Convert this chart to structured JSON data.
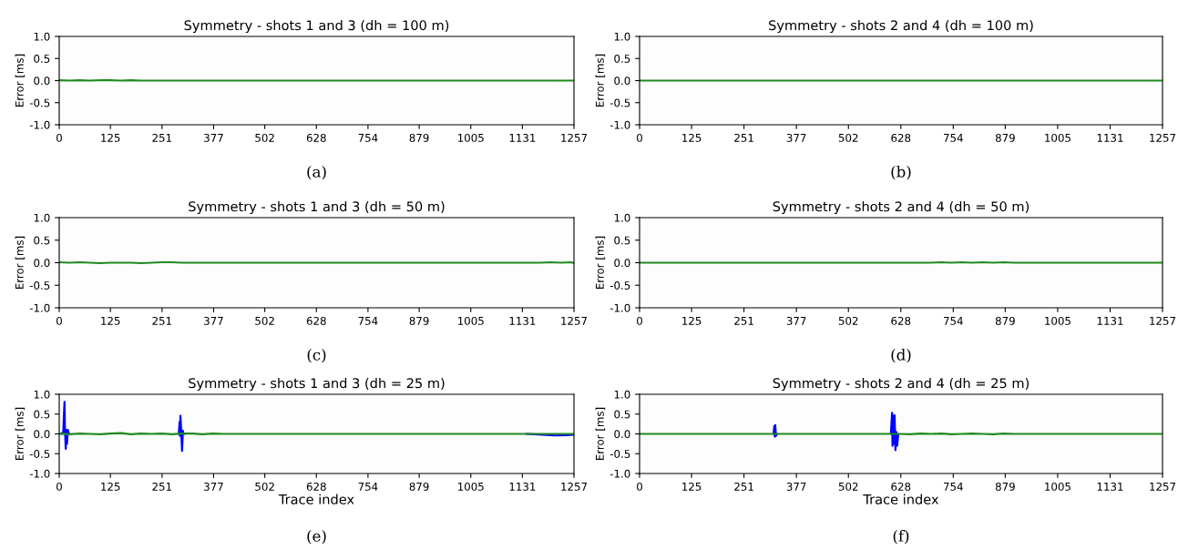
{
  "chart_data": [
    {
      "type": "line",
      "title": "Symmetry - shots 1 and 3 (dh = 100 m)",
      "ylabel": "Error [ms]",
      "xlim": [
        0,
        1257
      ],
      "xticks": [
        0,
        125,
        251,
        377,
        502,
        628,
        754,
        879,
        1005,
        1131,
        1257
      ],
      "ylim": [
        -1,
        1
      ],
      "yticks": [
        {
          "value": -1,
          "label": "-1.0"
        },
        {
          "value": -0.5,
          "label": "-0.5"
        },
        {
          "value": 0,
          "label": "0.0"
        },
        {
          "value": 0.5,
          "label": "0.5"
        },
        {
          "value": 1,
          "label": "1.0"
        }
      ],
      "grid": false,
      "annotations": [
        "(a)"
      ],
      "series": [
        {
          "color": "#208a20",
          "x": [
            0,
            25,
            50,
            75,
            100,
            125,
            150,
            175,
            200,
            225,
            250,
            275,
            300,
            325,
            350,
            375,
            400,
            425,
            450,
            475,
            500,
            525,
            550,
            575,
            600,
            625,
            650,
            675,
            700,
            725,
            750,
            775,
            800,
            825,
            850,
            875,
            900,
            925,
            950,
            975,
            1000,
            1025,
            1050,
            1075,
            1100,
            1125,
            1150,
            1175,
            1200,
            1225,
            1250,
            1257
          ],
          "values": [
            0.01,
            0,
            0.01,
            0,
            0.01,
            0.01,
            0,
            0.01,
            0,
            0,
            0,
            0,
            0,
            0,
            0,
            0,
            0,
            0,
            0,
            0,
            0,
            0,
            0,
            0,
            0,
            0,
            0,
            0,
            0,
            0,
            0,
            0,
            0,
            0,
            0,
            0,
            0,
            0,
            0,
            0,
            0,
            0,
            0,
            0,
            0,
            0,
            0,
            0,
            0,
            0,
            0,
            0
          ]
        }
      ]
    },
    {
      "type": "line",
      "title": "Symmetry - shots 1 and 3 (dh = 50 m)",
      "ylabel": "Error [ms]",
      "xlim": [
        0,
        1257
      ],
      "xticks": [
        0,
        125,
        251,
        377,
        502,
        628,
        754,
        879,
        1005,
        1131,
        1257
      ],
      "ylim": [
        -1,
        1
      ],
      "yticks": [
        {
          "value": -1,
          "label": "-1.0"
        },
        {
          "value": -0.5,
          "label": "-0.5"
        },
        {
          "value": 0,
          "label": "0.0"
        },
        {
          "value": 0.5,
          "label": "0.5"
        },
        {
          "value": 1,
          "label": "1.0"
        }
      ],
      "grid": false,
      "annotations": [
        "(c)"
      ],
      "series": [
        {
          "color": "#208a20",
          "x": [
            0,
            25,
            50,
            75,
            100,
            125,
            150,
            175,
            200,
            225,
            250,
            275,
            300,
            325,
            350,
            375,
            400,
            425,
            450,
            475,
            500,
            525,
            550,
            575,
            600,
            625,
            650,
            675,
            700,
            725,
            750,
            775,
            800,
            825,
            850,
            875,
            900,
            925,
            950,
            975,
            1000,
            1025,
            1050,
            1075,
            1100,
            1125,
            1150,
            1175,
            1200,
            1225,
            1250,
            1257
          ],
          "values": [
            0.01,
            0,
            0.01,
            0,
            -0.01,
            0,
            0,
            0,
            -0.01,
            0,
            0.01,
            0.01,
            0,
            0,
            0,
            0,
            0,
            0,
            0,
            0,
            0,
            0,
            0,
            0,
            0,
            0,
            0,
            0,
            0,
            0,
            0,
            0,
            0,
            0,
            0,
            0,
            0,
            0,
            0,
            0,
            0,
            0,
            0,
            0,
            0,
            0,
            0,
            0,
            0.01,
            0,
            0.01,
            -0.01
          ]
        }
      ]
    },
    {
      "type": "line",
      "title": "Symmetry - shots 1 and 3 (dh = 25 m)",
      "xlabel": "Trace index",
      "ylabel": "Error [ms]",
      "xlim": [
        0,
        1257
      ],
      "xticks": [
        0,
        125,
        251,
        377,
        502,
        628,
        754,
        879,
        1005,
        1131,
        1257
      ],
      "ylim": [
        -1,
        1
      ],
      "yticks": [
        {
          "value": -1,
          "label": "-1.0"
        },
        {
          "value": -0.5,
          "label": "-0.5"
        },
        {
          "value": 0,
          "label": "0.0"
        },
        {
          "value": 0.5,
          "label": "0.5"
        },
        {
          "value": 1,
          "label": "1.0"
        }
      ],
      "grid": false,
      "annotations": [
        "(e)"
      ],
      "series": [
        {
          "color": "#0000ff",
          "x": [
            6,
            10,
            12,
            13,
            14,
            16,
            17,
            19,
            21,
            24,
            150,
            292,
            294,
            295,
            296,
            298,
            300,
            302,
            303,
            306,
            700,
            1140,
            1180,
            1210,
            1240,
            1257
          ],
          "values": [
            0,
            0.05,
            0.6,
            0.81,
            0.1,
            -0.38,
            0.1,
            -0.25,
            0.1,
            0,
            null,
            0,
            0.3,
            -0.05,
            0.46,
            0.05,
            -0.43,
            0.08,
            0,
            0,
            null,
            0,
            -0.02,
            -0.04,
            -0.03,
            -0.02
          ]
        },
        {
          "color": "#208a20",
          "x": [
            0,
            25,
            50,
            75,
            100,
            125,
            150,
            175,
            200,
            225,
            250,
            275,
            300,
            325,
            350,
            375,
            400,
            425,
            450,
            475,
            500,
            525,
            550,
            575,
            600,
            625,
            650,
            675,
            700,
            725,
            750,
            775,
            800,
            825,
            850,
            875,
            900,
            925,
            950,
            975,
            1000,
            1025,
            1050,
            1075,
            1100,
            1125,
            1150,
            1175,
            1200,
            1225,
            1250,
            1257
          ],
          "values": [
            0.01,
            -0.01,
            0.01,
            0,
            -0.01,
            0.01,
            0.02,
            -0.01,
            0.01,
            0,
            0.01,
            -0.01,
            0.01,
            0.01,
            -0.01,
            0.01,
            0,
            0,
            0,
            0,
            0,
            0,
            0,
            0,
            0,
            0,
            0,
            0,
            0,
            0,
            0,
            0,
            0,
            0,
            0,
            0,
            0,
            0,
            0,
            0,
            0,
            0,
            0,
            0,
            0,
            0,
            0,
            0,
            0,
            0,
            0,
            0
          ]
        }
      ]
    },
    {
      "type": "line",
      "title": "Symmetry - shots 2 and 4 (dh = 100 m)",
      "ylabel": "Error [ms]",
      "xlim": [
        0,
        1257
      ],
      "xticks": [
        0,
        125,
        251,
        377,
        502,
        628,
        754,
        879,
        1005,
        1131,
        1257
      ],
      "ylim": [
        -1,
        1
      ],
      "yticks": [
        {
          "value": -1,
          "label": "-1.0"
        },
        {
          "value": -0.5,
          "label": "-0.5"
        },
        {
          "value": 0,
          "label": "0.0"
        },
        {
          "value": 0.5,
          "label": "0.5"
        },
        {
          "value": 1,
          "label": "1.0"
        }
      ],
      "grid": false,
      "annotations": [
        "(b)"
      ],
      "series": [
        {
          "color": "#208a20",
          "x": [
            0,
            25,
            50,
            75,
            100,
            125,
            150,
            175,
            200,
            225,
            250,
            275,
            300,
            325,
            350,
            375,
            400,
            425,
            450,
            475,
            500,
            525,
            550,
            575,
            600,
            625,
            650,
            675,
            700,
            725,
            750,
            775,
            800,
            825,
            850,
            875,
            900,
            925,
            950,
            975,
            1000,
            1025,
            1050,
            1075,
            1100,
            1125,
            1150,
            1175,
            1200,
            1225,
            1250,
            1257
          ],
          "values": [
            0,
            0,
            0,
            0,
            0,
            0,
            0,
            0,
            0,
            0,
            0,
            0,
            0,
            0,
            0,
            0,
            0,
            0,
            0,
            0,
            0,
            0,
            0,
            0,
            0,
            0,
            0,
            0,
            0,
            0,
            0,
            0,
            0,
            0,
            0,
            0,
            0,
            0,
            0,
            0,
            0,
            0,
            0,
            0,
            0,
            0,
            0,
            0,
            0,
            0,
            0,
            0
          ]
        }
      ]
    },
    {
      "type": "line",
      "title": "Symmetry - shots 2 and 4 (dh = 50 m)",
      "ylabel": "Error [ms]",
      "xlim": [
        0,
        1257
      ],
      "xticks": [
        0,
        125,
        251,
        377,
        502,
        628,
        754,
        879,
        1005,
        1131,
        1257
      ],
      "ylim": [
        -1,
        1
      ],
      "yticks": [
        {
          "value": -1,
          "label": "-1.0"
        },
        {
          "value": -0.5,
          "label": "-0.5"
        },
        {
          "value": 0,
          "label": "0.0"
        },
        {
          "value": 0.5,
          "label": "0.5"
        },
        {
          "value": 1,
          "label": "1.0"
        }
      ],
      "grid": false,
      "annotations": [
        "(d)"
      ],
      "series": [
        {
          "color": "#208a20",
          "x": [
            0,
            25,
            50,
            75,
            100,
            125,
            150,
            175,
            200,
            225,
            250,
            275,
            300,
            325,
            350,
            375,
            400,
            425,
            450,
            475,
            500,
            525,
            550,
            575,
            600,
            625,
            650,
            675,
            700,
            725,
            750,
            775,
            800,
            825,
            850,
            875,
            900,
            925,
            950,
            975,
            1000,
            1025,
            1050,
            1075,
            1100,
            1125,
            1150,
            1175,
            1200,
            1225,
            1250,
            1257
          ],
          "values": [
            0,
            0,
            0,
            0,
            0,
            0,
            0,
            0,
            0,
            0,
            0,
            0,
            0,
            0,
            0,
            0,
            0,
            0,
            0,
            0,
            0,
            0,
            0,
            0,
            0,
            0,
            0,
            0,
            0,
            0.01,
            0,
            0.01,
            0,
            0.01,
            0,
            0.01,
            0,
            0,
            0,
            0,
            0,
            0,
            0,
            0,
            0,
            0,
            0,
            0,
            0,
            0,
            0,
            0
          ]
        }
      ]
    },
    {
      "type": "line",
      "title": "Symmetry - shots 2 and 4 (dh = 25 m)",
      "xlabel": "Trace index",
      "ylabel": "Error [ms]",
      "xlim": [
        0,
        1257
      ],
      "xticks": [
        0,
        125,
        251,
        377,
        502,
        628,
        754,
        879,
        1005,
        1131,
        1257
      ],
      "ylim": [
        -1,
        1
      ],
      "yticks": [
        {
          "value": -1,
          "label": "-1.0"
        },
        {
          "value": -0.5,
          "label": "-0.5"
        },
        {
          "value": 0,
          "label": "0.0"
        },
        {
          "value": 0.5,
          "label": "0.5"
        },
        {
          "value": 1,
          "label": "1.0"
        }
      ],
      "grid": false,
      "annotations": [
        "(f)"
      ],
      "series": [
        {
          "color": "#0000ff",
          "x": [
            322,
            324,
            325,
            326,
            328,
            330,
            450,
            604,
            607,
            608,
            610,
            612,
            613,
            615,
            617,
            619,
            622
          ],
          "values": [
            0,
            0.2,
            -0.07,
            0.22,
            -0.05,
            0,
            null,
            0,
            0.53,
            -0.3,
            0.45,
            -0.25,
            0.47,
            -0.41,
            0.05,
            -0.3,
            0
          ]
        },
        {
          "color": "#208a20",
          "x": [
            0,
            25,
            50,
            75,
            100,
            125,
            150,
            175,
            200,
            225,
            250,
            275,
            300,
            325,
            350,
            375,
            400,
            425,
            450,
            475,
            500,
            525,
            550,
            575,
            600,
            625,
            650,
            675,
            700,
            725,
            750,
            775,
            800,
            825,
            850,
            875,
            900,
            925,
            950,
            975,
            1000,
            1025,
            1050,
            1075,
            1100,
            1125,
            1150,
            1175,
            1200,
            1225,
            1250,
            1257
          ],
          "values": [
            0,
            0,
            0,
            0,
            0,
            0,
            0,
            0,
            0,
            0,
            0,
            0,
            0,
            0,
            0,
            0,
            0,
            0,
            0,
            0,
            0,
            0,
            0,
            0,
            0,
            0,
            -0.01,
            0.01,
            0,
            0.01,
            -0.01,
            0,
            0.01,
            0,
            -0.01,
            0.01,
            0,
            0,
            0,
            0,
            0,
            0,
            0,
            0,
            0,
            0,
            0,
            0,
            0,
            0,
            0,
            0
          ]
        }
      ]
    }
  ]
}
